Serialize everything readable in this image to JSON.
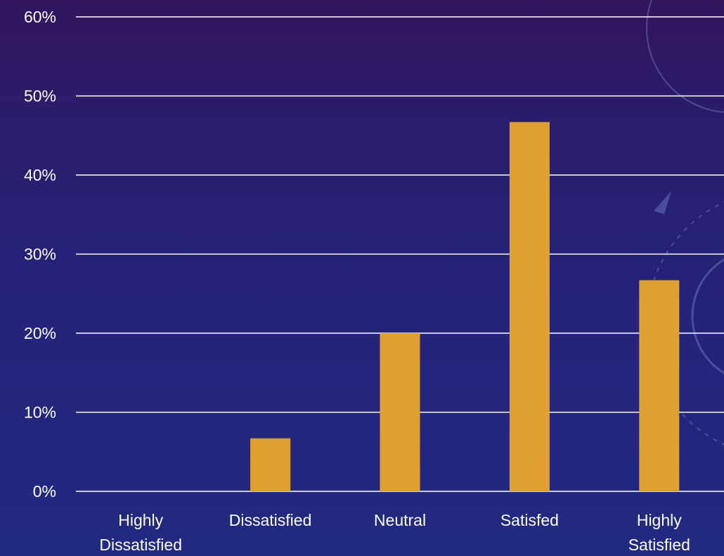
{
  "chart_data": {
    "type": "bar",
    "categories": [
      "Highly Dissatisfied",
      "Dissatisfied",
      "Neutral",
      "Satisfed",
      "Highly Satisfied"
    ],
    "category_label_lines": [
      [
        "Highly",
        "Dissatisfied"
      ],
      [
        "Dissatisfied"
      ],
      [
        "Neutral"
      ],
      [
        "Satisfed"
      ],
      [
        "Highly",
        "Satisfied"
      ]
    ],
    "values": [
      0,
      6.7,
      20,
      46.7,
      26.7
    ],
    "title": "",
    "xlabel": "",
    "ylabel": "",
    "ylim": [
      0,
      60
    ],
    "yticks": [
      0,
      10,
      20,
      30,
      40,
      50,
      60
    ],
    "ytick_labels": [
      "0%",
      "10%",
      "20%",
      "30%",
      "40%",
      "50%",
      "60%"
    ],
    "grid": true,
    "legend": "none",
    "bar_color": "#e0a030",
    "gridline_color": "#ffffff",
    "text_color": "#ffffff"
  }
}
